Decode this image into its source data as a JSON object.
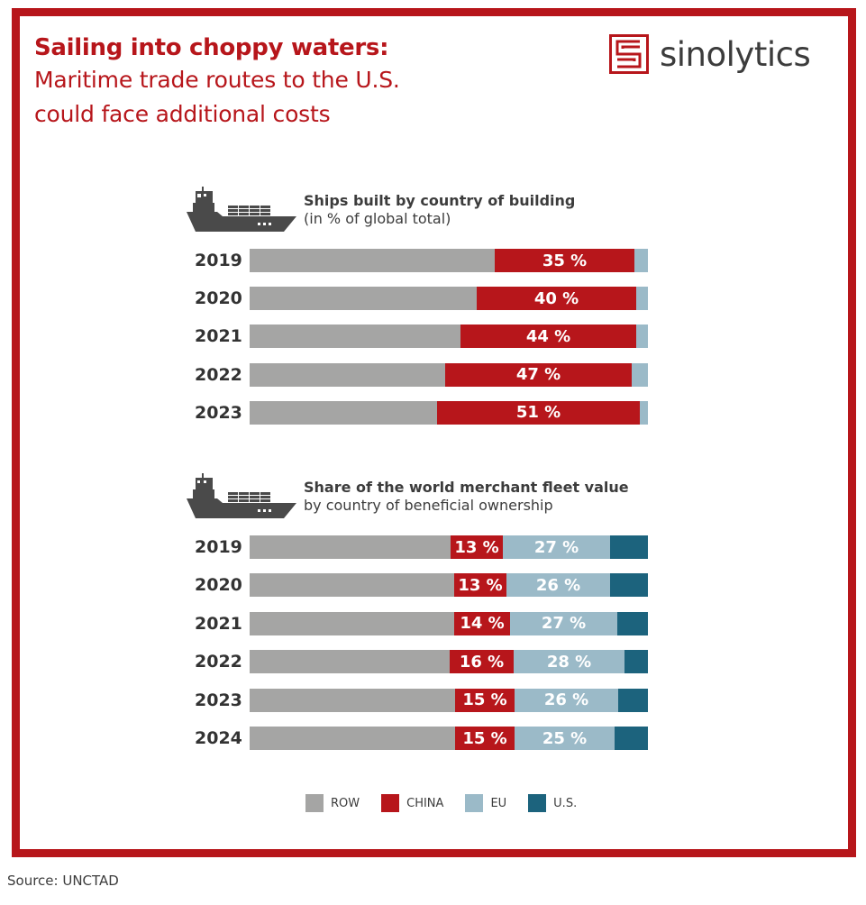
{
  "title": {
    "bold": "Sailing into choppy waters:",
    "line1": "Maritime trade routes to the U.S.",
    "line2": "could face additional costs"
  },
  "logo": {
    "text": "sinolytics",
    "icon": "sinolytics-s-maze-icon"
  },
  "colors": {
    "frame": "#b7161b",
    "row": "#a5a5a4",
    "china": "#b7161b",
    "eu": "#9bbac8",
    "us": "#1c637d",
    "text": "#3c3c3c"
  },
  "legend": [
    {
      "key": "row",
      "label": "ROW"
    },
    {
      "key": "china",
      "label": "CHINA"
    },
    {
      "key": "eu",
      "label": "EU"
    },
    {
      "key": "us",
      "label": "U.S."
    }
  ],
  "source": "Source: UNCTAD",
  "chart_data": [
    {
      "type": "bar",
      "orientation": "horizontal-stacked-100",
      "title": "Ships built by country of building",
      "subtitle": "(in % of global total)",
      "icon": "cargo-ship-icon",
      "categories": [
        "2019",
        "2020",
        "2021",
        "2022",
        "2023"
      ],
      "series": [
        {
          "name": "ROW",
          "key": "row",
          "values": [
            61.5,
            57,
            53,
            49,
            47
          ],
          "labeled": false
        },
        {
          "name": "CHINA",
          "key": "china",
          "values": [
            35,
            40,
            44,
            47,
            51
          ],
          "labeled": true,
          "labels": [
            "35 %",
            "40 %",
            "44 %",
            "47 %",
            "51 %"
          ]
        },
        {
          "name": "EU",
          "key": "eu",
          "values": [
            3.5,
            3,
            3,
            4,
            2
          ],
          "labeled": false
        }
      ],
      "xlim": [
        0,
        100
      ],
      "unit": "%"
    },
    {
      "type": "bar",
      "orientation": "horizontal-stacked-100",
      "title": "Share of the world merchant fleet value",
      "subtitle": "by country of beneficial ownership",
      "icon": "cargo-ship-icon",
      "categories": [
        "2019",
        "2020",
        "2021",
        "2022",
        "2023",
        "2024"
      ],
      "series": [
        {
          "name": "ROW",
          "key": "row",
          "values": [
            50.5,
            51.4,
            51.4,
            50.2,
            51.6,
            51.6
          ],
          "labeled": false
        },
        {
          "name": "CHINA",
          "key": "china",
          "values": [
            13,
            13,
            14,
            16,
            15,
            15
          ],
          "labeled": true,
          "labels": [
            "13 %",
            "13 %",
            "14 %",
            "16 %",
            "15 %",
            "15 %"
          ]
        },
        {
          "name": "EU",
          "key": "eu",
          "values": [
            27,
            26,
            27,
            28,
            26,
            25
          ],
          "labeled": true,
          "labels": [
            "27 %",
            "26 %",
            "27 %",
            "28 %",
            "26 %",
            "25 %"
          ]
        },
        {
          "name": "U.S.",
          "key": "us",
          "values": [
            9.5,
            9.6,
            7.6,
            5.8,
            7.4,
            8.4
          ],
          "labeled": false
        }
      ],
      "xlim": [
        0,
        100
      ],
      "unit": "%"
    }
  ]
}
